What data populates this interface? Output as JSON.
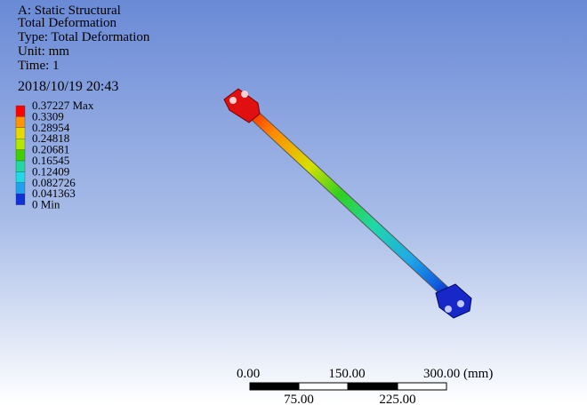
{
  "header": {
    "lines": [
      "A: Static Structural",
      "Total Deformation",
      "Type: Total Deformation",
      "Unit: mm",
      "Time: 1"
    ],
    "timestamp": "2018/10/19 20:43"
  },
  "legend": {
    "labels": [
      "0.37227 Max",
      "0.3309",
      "0.28954",
      "0.24818",
      "0.20681",
      "0.16545",
      "0.12409",
      "0.082726",
      "0.041363",
      "0 Min"
    ]
  },
  "scale_bar": {
    "top_labels": [
      "0.00",
      "150.00",
      "300.00 (mm)"
    ],
    "bottom_labels": [
      "75.00",
      "225.00"
    ]
  }
}
